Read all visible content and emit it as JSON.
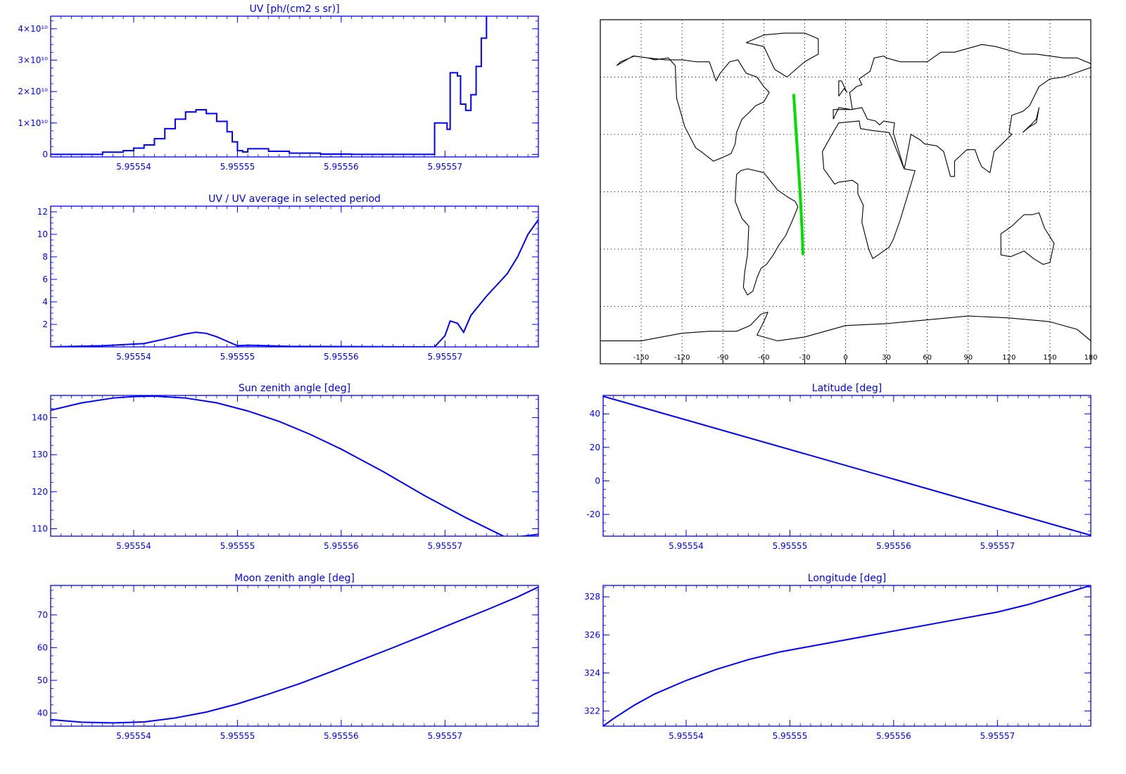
{
  "colors": {
    "axis": "#0000ff",
    "line": "#0000ff",
    "track": "#00e000",
    "coast": "#000000",
    "grid": "#000000",
    "map_axis": "#000000"
  },
  "x_tick_labels": [
    "5.95554",
    "5.95555",
    "5.95556",
    "5.95557"
  ],
  "chart_data": [
    {
      "id": "uv",
      "type": "line",
      "title": "UV [ph/(cm2 s sr)]",
      "xlim": [
        5.955532,
        5.955579
      ],
      "ylim": [
        -800000000,
        44000000000
      ],
      "xticks": [
        5.95554,
        5.95555,
        5.95556,
        5.95557
      ],
      "yticks": [
        0,
        10000000000,
        20000000000,
        30000000000,
        40000000000
      ],
      "ytick_labels": [
        "0",
        "1×10¹⁰",
        "2×10¹⁰",
        "3×10¹⁰",
        "4×10¹⁰"
      ],
      "step": true,
      "series": [
        {
          "x": [
            5.955532,
            5.955535,
            5.955537,
            5.955539,
            5.95554,
            5.955541,
            5.955542,
            5.955543,
            5.955544,
            5.955545,
            5.955546,
            5.955547,
            5.955548,
            5.955549,
            5.9555495,
            5.95555,
            5.9555505,
            5.955551,
            5.955553,
            5.955555,
            5.955558,
            5.955561,
            5.955565,
            5.9555685,
            5.955569,
            5.95557,
            5.9555702,
            5.9555705,
            5.9555712,
            5.9555715,
            5.955572,
            5.9555725,
            5.955573,
            5.9555735,
            5.955574,
            5.955574
          ],
          "y": [
            0,
            0,
            700000000,
            1200000000,
            2000000000,
            3000000000,
            5000000000,
            8200000000,
            11200000000,
            13500000000,
            14200000000,
            13000000000,
            10500000000,
            7200000000,
            4000000000,
            1200000000,
            800000000,
            1800000000,
            1000000000,
            400000000,
            100000000,
            0,
            0,
            0,
            10000000000,
            10000000000,
            8000000000,
            26000000000,
            25000000000,
            16000000000,
            14000000000,
            19000000000,
            28000000000,
            37000000000,
            40000000000,
            44000000000
          ]
        }
      ]
    },
    {
      "id": "uvratio",
      "type": "line",
      "title": "UV / UV average in selected period",
      "xlim": [
        5.955532,
        5.955579
      ],
      "ylim": [
        0,
        12.5
      ],
      "xticks": [
        5.95554,
        5.95555,
        5.95556,
        5.95557
      ],
      "yticks": [
        2,
        4,
        6,
        8,
        10,
        12
      ],
      "series": [
        {
          "x": [
            5.955532,
            5.955537,
            5.955541,
            5.955543,
            5.955545,
            5.955546,
            5.955547,
            5.955548,
            5.955549,
            5.95555,
            5.955551,
            5.955555,
            5.955568,
            5.955569,
            5.95557,
            5.9555705,
            5.9555712,
            5.9555718,
            5.9555725,
            5.955574,
            5.955576,
            5.955577,
            5.955578,
            5.955579
          ],
          "y": [
            0,
            0.1,
            0.3,
            0.7,
            1.15,
            1.3,
            1.2,
            0.9,
            0.5,
            0.1,
            0.15,
            0.05,
            0,
            0,
            1.0,
            2.3,
            2.1,
            1.3,
            2.8,
            4.5,
            6.5,
            8.0,
            10.0,
            11.3
          ]
        }
      ]
    },
    {
      "id": "sza",
      "type": "line",
      "title": "Sun zenith angle [deg]",
      "xlim": [
        5.955532,
        5.955579
      ],
      "ylim": [
        108,
        146
      ],
      "xticks": [
        5.95554,
        5.95555,
        5.95556,
        5.95557
      ],
      "yticks": [
        110,
        120,
        130,
        140
      ],
      "series": [
        {
          "x": [
            5.955532,
            5.955535,
            5.955538,
            5.95554,
            5.955542,
            5.955545,
            5.955548,
            5.955551,
            5.955554,
            5.955557,
            5.95556,
            5.955564,
            5.955568,
            5.955572,
            5.955576,
            5.955579
          ],
          "y": [
            142,
            144,
            145.3,
            145.7,
            145.8,
            145.3,
            144,
            141.8,
            139,
            135.5,
            131.5,
            125.5,
            119,
            113,
            107.5,
            108.5
          ]
        }
      ]
    },
    {
      "id": "lat",
      "type": "line",
      "title": "Latitude [deg]",
      "xlim": [
        5.955532,
        5.955579
      ],
      "ylim": [
        -33,
        51
      ],
      "xticks": [
        5.95554,
        5.95555,
        5.95556,
        5.95557
      ],
      "yticks": [
        -20,
        0,
        20,
        40
      ],
      "series": [
        {
          "x": [
            5.955532,
            5.955579
          ],
          "y": [
            50.5,
            -32.5
          ]
        }
      ]
    },
    {
      "id": "mza",
      "type": "line",
      "title": "Moon zenith angle [deg]",
      "xlim": [
        5.955532,
        5.955579
      ],
      "ylim": [
        36,
        79
      ],
      "xticks": [
        5.95554,
        5.95555,
        5.95556,
        5.95557
      ],
      "yticks": [
        40,
        50,
        60,
        70
      ],
      "series": [
        {
          "x": [
            5.955532,
            5.955535,
            5.955538,
            5.955541,
            5.955544,
            5.955547,
            5.95555,
            5.955553,
            5.955556,
            5.955559,
            5.955562,
            5.955565,
            5.955568,
            5.955571,
            5.955574,
            5.955577,
            5.955579
          ],
          "y": [
            38,
            37.2,
            37,
            37.3,
            38.5,
            40.3,
            42.8,
            45.8,
            49,
            52.6,
            56.3,
            60,
            63.8,
            67.7,
            71.5,
            75.5,
            78.5
          ]
        }
      ]
    },
    {
      "id": "lon",
      "type": "line",
      "title": "Longitude [deg]",
      "xlim": [
        5.955532,
        5.955579
      ],
      "ylim": [
        321.2,
        328.6
      ],
      "xticks": [
        5.95554,
        5.95555,
        5.95556,
        5.95557
      ],
      "yticks": [
        322,
        324,
        326,
        328
      ],
      "series": [
        {
          "x": [
            5.955532,
            5.955533,
            5.955535,
            5.955537,
            5.95554,
            5.955543,
            5.955546,
            5.955549,
            5.955552,
            5.955555,
            5.955558,
            5.955561,
            5.955564,
            5.955567,
            5.95557,
            5.955573,
            5.955576,
            5.955579
          ],
          "y": [
            321.2,
            321.6,
            322.3,
            322.9,
            323.6,
            324.2,
            324.7,
            325.1,
            325.4,
            325.7,
            326.0,
            326.3,
            326.6,
            326.9,
            327.2,
            327.6,
            328.1,
            328.6
          ]
        }
      ]
    }
  ],
  "map": {
    "xlim": [
      -180,
      180
    ],
    "ylim": [
      -90,
      90
    ],
    "x_ticks": [
      -150,
      -120,
      -90,
      -60,
      -30,
      0,
      30,
      60,
      90,
      120,
      150,
      180
    ],
    "x_tick_labels": [
      "-150",
      "-120",
      "-90",
      "-60",
      "-30",
      "0",
      "30",
      "60",
      "90",
      "120",
      "150",
      "180"
    ],
    "grid_lon": [
      -150,
      -120,
      -90,
      -60,
      -30,
      0,
      30,
      60,
      90,
      120,
      150
    ],
    "grid_lat": [
      -60,
      -30,
      0,
      30,
      60
    ],
    "track": {
      "lon": [
        -38.0,
        -36.8,
        -35.5,
        -34.2,
        -33.0,
        -31.9,
        -31.3
      ],
      "lat": [
        50.5,
        37,
        23,
        9,
        -5,
        -20,
        -32.5
      ]
    },
    "coastlines": [
      {
        "name": "north-america",
        "lon": [
          -168,
          -156,
          -145,
          -140,
          -130,
          -125,
          -124,
          -118,
          -110,
          -106,
          -97,
          -90,
          -84,
          -81,
          -80,
          -76,
          -70,
          -66,
          -60,
          -56,
          -60,
          -65,
          -73,
          -79,
          -85,
          -92,
          -95,
          -100,
          -110,
          -120,
          -132,
          -145,
          -155,
          -165,
          -168
        ],
        "lat": [
          66,
          71,
          70,
          69,
          70,
          66,
          49,
          34,
          23,
          21,
          16,
          18,
          20,
          25,
          31,
          38,
          42,
          45,
          47,
          52,
          55,
          60,
          62,
          69,
          68,
          62,
          58,
          68,
          68,
          69,
          69,
          70,
          71,
          68,
          66
        ]
      },
      {
        "name": "south-america",
        "lon": [
          -80,
          -77,
          -72,
          -60,
          -50,
          -42,
          -37,
          -35,
          -39,
          -44,
          -49,
          -53,
          -58,
          -62,
          -65,
          -68,
          -72,
          -75,
          -74,
          -72,
          -71,
          -76,
          -81,
          -80
        ],
        "lat": [
          9,
          11,
          12,
          10,
          1,
          -3,
          -5,
          -8,
          -15,
          -23,
          -28,
          -33,
          -38,
          -40,
          -45,
          -52,
          -54,
          -50,
          -42,
          -33,
          -18,
          -14,
          -5,
          9
        ]
      },
      {
        "name": "greenland",
        "lon": [
          -73,
          -60,
          -45,
          -30,
          -20,
          -20,
          -30,
          -43,
          -52,
          -56,
          -60,
          -73
        ],
        "lat": [
          78,
          82,
          83,
          83,
          80,
          72,
          68,
          60,
          64,
          70,
          76,
          78
        ]
      },
      {
        "name": "africa",
        "lon": [
          -17,
          -10,
          -5,
          10,
          11,
          20,
          32,
          34,
          43,
          51,
          40,
          35,
          32,
          20,
          17,
          12,
          13,
          9,
          9,
          5,
          -5,
          -8,
          -12,
          -16,
          -17
        ],
        "lat": [
          21,
          30,
          36,
          37,
          33,
          32,
          31,
          28,
          12,
          11,
          -15,
          -25,
          -29,
          -35,
          -30,
          -16,
          -7,
          -1,
          4,
          6,
          5,
          4,
          8,
          12,
          21
        ]
      },
      {
        "name": "eurasia",
        "lon": [
          -9,
          -9,
          -2,
          5,
          3,
          5,
          8,
          12,
          10,
          18,
          21,
          28,
          30,
          40,
          45,
          60,
          70,
          80,
          100,
          110,
          130,
          140,
          160,
          170,
          180,
          180,
          160,
          150,
          142,
          135,
          130,
          122,
          120,
          122,
          109,
          106,
          100,
          98,
          95,
          92,
          89,
          80,
          80,
          77,
          72,
          67,
          58,
          55,
          48,
          44,
          43,
          35,
          36,
          28,
          25,
          22,
          16,
          12,
          4,
          -5,
          -9
        ],
        "lat": [
          38,
          43,
          43,
          43,
          52,
          53,
          55,
          56,
          59,
          63,
          70,
          71,
          70,
          68,
          68,
          68,
          73,
          73,
          77,
          76,
          72,
          72,
          70,
          70,
          67,
          65,
          60,
          59,
          55,
          45,
          42,
          40,
          31,
          30,
          21,
          10,
          13,
          16,
          22,
          22,
          22,
          16,
          8,
          8,
          21,
          24,
          25,
          27,
          30,
          15,
          12,
          31,
          36,
          37,
          35,
          37,
          38,
          44,
          43,
          44,
          38
        ]
      },
      {
        "name": "british-isles",
        "lon": [
          -5,
          -1,
          1,
          -3,
          -5,
          -5
        ],
        "lat": [
          50,
          54,
          52,
          58,
          58,
          50
        ]
      },
      {
        "name": "australia",
        "lon": [
          114,
          122,
          131,
          137,
          142,
          146,
          153,
          150,
          145,
          138,
          131,
          121,
          114,
          114
        ],
        "lat": [
          -22,
          -18,
          -12,
          -12,
          -11,
          -19,
          -27,
          -37,
          -38,
          -35,
          -31,
          -34,
          -33,
          -22
        ]
      },
      {
        "name": "japan",
        "lon": [
          130,
          135,
          140,
          142,
          140,
          136,
          130
        ],
        "lat": [
          31,
          34,
          36,
          44,
          38,
          35,
          31
        ]
      },
      {
        "name": "antarctica",
        "lon": [
          -180,
          -150,
          -120,
          -100,
          -80,
          -70,
          -62,
          -57,
          -60,
          -65,
          -50,
          -30,
          0,
          30,
          60,
          90,
          120,
          150,
          170,
          180
        ],
        "lat": [
          -78,
          -78,
          -74,
          -73,
          -73,
          -70,
          -64,
          -63,
          -68,
          -75,
          -78,
          -76,
          -70,
          -69,
          -67,
          -65,
          -66,
          -68,
          -72,
          -78
        ]
      }
    ]
  }
}
